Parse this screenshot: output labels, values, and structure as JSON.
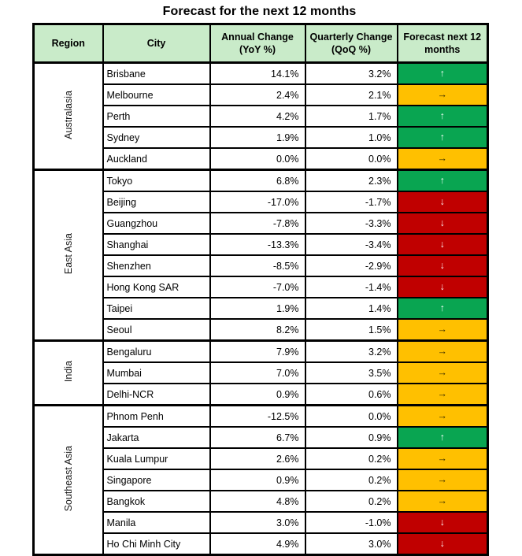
{
  "title": "Forecast for the next 12 months",
  "columns": {
    "region": "Region",
    "city": "City",
    "yoy": "Annual Change (YoY %)",
    "qoq": "Quarterly Change (QoQ %)",
    "forecast": "Forecast next 12 months"
  },
  "arrows": {
    "up": "↑",
    "flat": "→",
    "down": "↓"
  },
  "colors": {
    "up": "#09a551",
    "flat": "#ffc000",
    "down": "#c00000",
    "header_bg": "#c9ebc9",
    "border": "#000000"
  },
  "groups": [
    {
      "region": "Australasia",
      "rows": [
        {
          "city": "Brisbane",
          "yoy": "14.1%",
          "qoq": "3.2%",
          "trend": "up"
        },
        {
          "city": "Melbourne",
          "yoy": "2.4%",
          "qoq": "2.1%",
          "trend": "flat"
        },
        {
          "city": "Perth",
          "yoy": "4.2%",
          "qoq": "1.7%",
          "trend": "up"
        },
        {
          "city": "Sydney",
          "yoy": "1.9%",
          "qoq": "1.0%",
          "trend": "up"
        },
        {
          "city": "Auckland",
          "yoy": "0.0%",
          "qoq": "0.0%",
          "trend": "flat"
        }
      ]
    },
    {
      "region": "East Asia",
      "rows": [
        {
          "city": "Tokyo",
          "yoy": "6.8%",
          "qoq": "2.3%",
          "trend": "up"
        },
        {
          "city": "Beijing",
          "yoy": "-17.0%",
          "qoq": "-1.7%",
          "trend": "down"
        },
        {
          "city": "Guangzhou",
          "yoy": "-7.8%",
          "qoq": "-3.3%",
          "trend": "down"
        },
        {
          "city": "Shanghai",
          "yoy": "-13.3%",
          "qoq": "-3.4%",
          "trend": "down"
        },
        {
          "city": "Shenzhen",
          "yoy": "-8.5%",
          "qoq": "-2.9%",
          "trend": "down"
        },
        {
          "city": "Hong Kong SAR",
          "yoy": "-7.0%",
          "qoq": "-1.4%",
          "trend": "down"
        },
        {
          "city": "Taipei",
          "yoy": "1.9%",
          "qoq": "1.4%",
          "trend": "up"
        },
        {
          "city": "Seoul",
          "yoy": "8.2%",
          "qoq": "1.5%",
          "trend": "flat"
        }
      ]
    },
    {
      "region": "India",
      "rows": [
        {
          "city": "Bengaluru",
          "yoy": "7.9%",
          "qoq": "3.2%",
          "trend": "flat"
        },
        {
          "city": "Mumbai",
          "yoy": "7.0%",
          "qoq": "3.5%",
          "trend": "flat"
        },
        {
          "city": "Delhi-NCR",
          "yoy": "0.9%",
          "qoq": "0.6%",
          "trend": "flat"
        }
      ]
    },
    {
      "region": "Southeast Asia",
      "rows": [
        {
          "city": "Phnom Penh",
          "yoy": "-12.5%",
          "qoq": "0.0%",
          "trend": "flat"
        },
        {
          "city": "Jakarta",
          "yoy": "6.7%",
          "qoq": "0.9%",
          "trend": "up"
        },
        {
          "city": "Kuala Lumpur",
          "yoy": "2.6%",
          "qoq": "0.2%",
          "trend": "flat"
        },
        {
          "city": "Singapore",
          "yoy": "0.9%",
          "qoq": "0.2%",
          "trend": "flat"
        },
        {
          "city": "Bangkok",
          "yoy": "4.8%",
          "qoq": "0.2%",
          "trend": "flat"
        },
        {
          "city": "Manila",
          "yoy": "3.0%",
          "qoq": "-1.0%",
          "trend": "down"
        },
        {
          "city": "Ho Chi Minh City",
          "yoy": "4.9%",
          "qoq": "3.0%",
          "trend": "down"
        }
      ]
    }
  ]
}
